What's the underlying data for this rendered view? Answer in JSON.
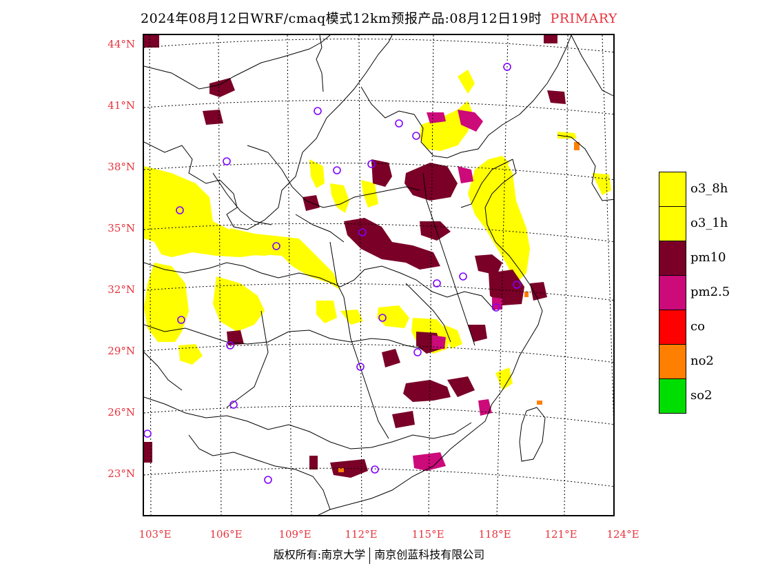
{
  "title": {
    "main": "2024年08月12日WRF/cmaq模式12km预报产品:08月12日19时",
    "tag": "PRIMARY"
  },
  "lat_labels": [
    "44°N",
    "41°N",
    "38°N",
    "35°N",
    "32°N",
    "29°N",
    "26°N",
    "23°N"
  ],
  "lon_labels": [
    "103°E",
    "106°E",
    "109°E",
    "112°E",
    "115°E",
    "118°E",
    "121°E",
    "124°E"
  ],
  "legend": [
    {
      "label": "o3_8h",
      "color": "#ffff00"
    },
    {
      "label": "o3_1h",
      "color": "#ffff00"
    },
    {
      "label": "pm10",
      "color": "#7a0027"
    },
    {
      "label": "pm2.5",
      "color": "#cc0a7a"
    },
    {
      "label": "co",
      "color": "#ff0000"
    },
    {
      "label": "no2",
      "color": "#ff7f00"
    },
    {
      "label": "so2",
      "color": "#00dd00"
    }
  ],
  "footer": {
    "left": "版权所有:南京大学",
    "right": "南京创蓝科技有限公司"
  }
}
